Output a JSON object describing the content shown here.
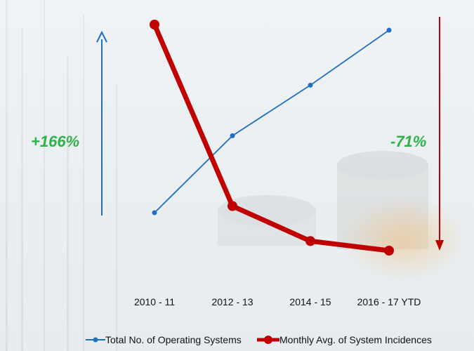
{
  "chart_data": {
    "type": "line",
    "categories": [
      "2010 - 11",
      "2012 - 13",
      "2014 - 15",
      "2016 - 17 YTD"
    ],
    "series": [
      {
        "name": "Total No. of Operating Systems",
        "color": "#1f6fc4",
        "values": [
          100,
          170,
          216,
          266
        ]
      },
      {
        "name": "Monthly Avg. of System Incidences",
        "color": "#c00000",
        "values": [
          100,
          43,
          32,
          29
        ]
      }
    ],
    "annotations": [
      {
        "text": "+166%",
        "color": "#2db34a",
        "arrow": "up",
        "arrow_color": "#1f6fc4"
      },
      {
        "text": "-71%",
        "color": "#2db34a",
        "arrow": "down",
        "arrow_color": "#c00000"
      }
    ],
    "legend_position": "bottom",
    "grid": false
  }
}
